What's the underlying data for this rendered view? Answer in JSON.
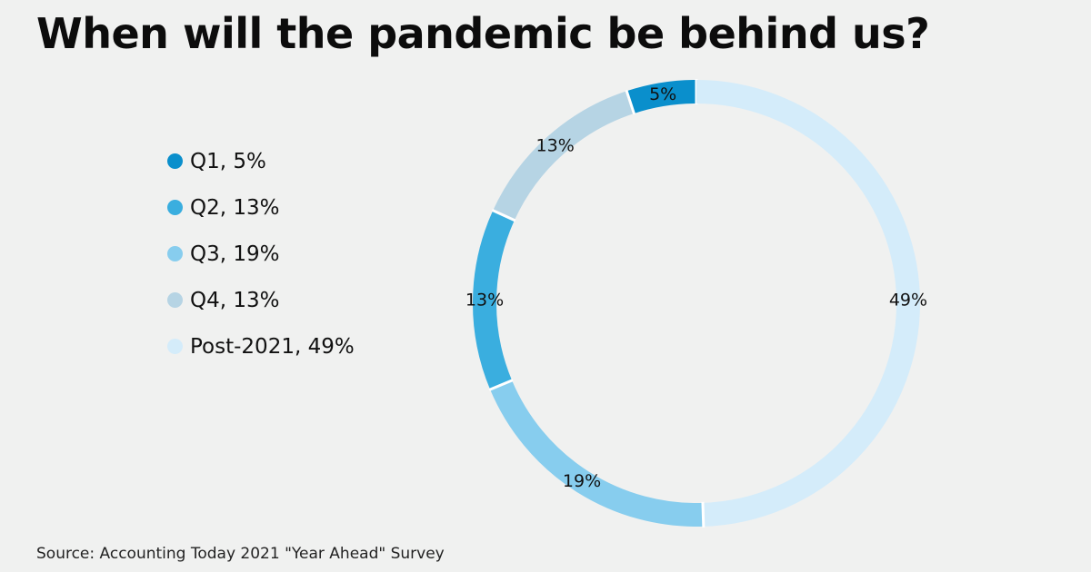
{
  "title": "When will the pandemic be behind us?",
  "source": "Source: Accounting Today 2021 \"Year Ahead\" Survey",
  "legend": {
    "items": [
      {
        "label": "Q1, 5%",
        "color": "#0a8fcc"
      },
      {
        "label": "Q2, 13%",
        "color": "#3aaedf"
      },
      {
        "label": "Q3, 19%",
        "color": "#87cdee"
      },
      {
        "label": "Q4, 13%",
        "color": "#b6d4e4"
      },
      {
        "label": "Post-2021, 49%",
        "color": "#d4ecfa"
      }
    ]
  },
  "chart_data": {
    "type": "pie",
    "variant": "donut",
    "title": "When will the pandemic be behind us?",
    "categories": [
      "Q1",
      "Q2",
      "Q3",
      "Q4",
      "Post-2021"
    ],
    "values": [
      5,
      13,
      19,
      13,
      49
    ],
    "value_labels": [
      "5%",
      "13%",
      "19%",
      "13%",
      "49%"
    ],
    "slice_order_counterclockwise_from_top": [
      "Q1",
      "Q4",
      "Q2",
      "Q3",
      "Post-2021"
    ],
    "colors": [
      "#0a8fcc",
      "#3aaedf",
      "#87cdee",
      "#b6d4e4",
      "#d4ecfa"
    ],
    "legend_position": "left"
  }
}
